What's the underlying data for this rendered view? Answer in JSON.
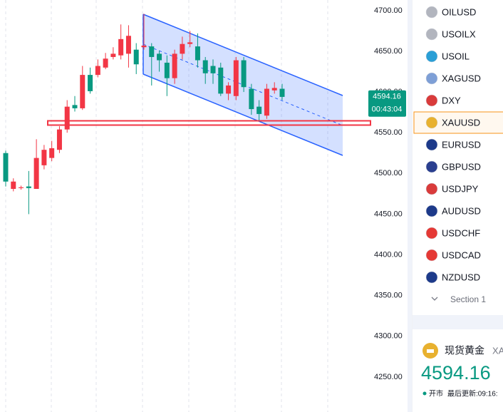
{
  "chart_data": {
    "type": "candlestick",
    "open": [
      4525,
      4481,
      4482,
      4484,
      4481,
      4510,
      4519,
      4529,
      4554,
      4584,
      4580,
      4621,
      4621,
      4630,
      4643,
      4645,
      4647,
      4652,
      4655,
      4656,
      4647,
      4636,
      4617,
      4647,
      4659,
      4656,
      4639,
      4632,
      4630,
      4598,
      4595,
      4639,
      4604,
      4582,
      4571,
      4602,
      4604
    ],
    "high": [
      4528,
      4494,
      4485,
      4503,
      4542,
      4535,
      4540,
      4558,
      4590,
      4595,
      4632,
      4630,
      4640,
      4648,
      4655,
      4683,
      4682,
      4660,
      4696,
      4660,
      4651,
      4645,
      4652,
      4668,
      4675,
      4672,
      4643,
      4640,
      4636,
      4612,
      4643,
      4643,
      4610,
      4590,
      4610,
      4612,
      4610
    ],
    "low": [
      4484,
      4478,
      4480,
      4450,
      4481,
      4505,
      4515,
      4525,
      4550,
      4576,
      4578,
      4598,
      4618,
      4628,
      4640,
      4640,
      4630,
      4622,
      4652,
      4608,
      4625,
      4595,
      4610,
      4640,
      4655,
      4630,
      4610,
      4610,
      4595,
      4590,
      4590,
      4600,
      4572,
      4565,
      4567,
      4598,
      4590
    ],
    "close": [
      4490,
      4490,
      4483,
      4482,
      4519,
      4529,
      4531,
      4554,
      4582,
      4580,
      4621,
      4601,
      4632,
      4641,
      4647,
      4665,
      4669,
      4634,
      4657,
      4643,
      4639,
      4617,
      4647,
      4659,
      4661,
      4639,
      4623,
      4623,
      4598,
      4608,
      4639,
      4606,
      4579,
      4573,
      4604,
      4605,
      4594
    ],
    "up_color": "#f23645",
    "down_color": "#089981",
    "ylim": [
      4207,
      4713
    ],
    "yticks": [
      {
        "value": 4250,
        "label": "4250.00"
      },
      {
        "value": 4300,
        "label": "4300.00"
      },
      {
        "value": 4350,
        "label": "4350.00"
      },
      {
        "value": 4400,
        "label": "4400.00"
      },
      {
        "value": 4450,
        "label": "4450.00"
      },
      {
        "value": 4500,
        "label": "4500.00"
      },
      {
        "value": 4550,
        "label": "4550.00"
      },
      {
        "value": 4600,
        "label": "4600.00"
      },
      {
        "value": 4650,
        "label": "4650.00"
      },
      {
        "value": 4700,
        "label": "4700.00"
      }
    ],
    "last_price": 4594.16,
    "countdown": "00:43:04",
    "support_line": 4562
  },
  "watchlist": {
    "items": [
      {
        "symbol": "OILUSD",
        "icon_color": "#b2b5be"
      },
      {
        "symbol": "USOILX",
        "icon_color": "#b2b5be"
      },
      {
        "symbol": "USOIL",
        "icon_color": "#2a9fd6"
      },
      {
        "symbol": "XAGUSD",
        "icon_color": "#7e9fd6"
      },
      {
        "symbol": "DXY",
        "icon_color": "#d93b3b"
      },
      {
        "symbol": "XAUUSD",
        "icon_color": "#e8b12f"
      },
      {
        "symbol": "EURUSD",
        "icon_color": "#1d3a8a"
      },
      {
        "symbol": "GBPUSD",
        "icon_color": "#2a3f8f"
      },
      {
        "symbol": "USDJPY",
        "icon_color": "#d93b3b"
      },
      {
        "symbol": "AUDUSD",
        "icon_color": "#1d3a8a"
      },
      {
        "symbol": "USDCHF",
        "icon_color": "#e53935"
      },
      {
        "symbol": "USDCAD",
        "icon_color": "#e53935"
      },
      {
        "symbol": "NZDUSD",
        "icon_color": "#1d3a8a"
      }
    ],
    "selected_index": 5,
    "section": "Section 1"
  },
  "quote": {
    "name": "现货黄金",
    "symbol": "XA",
    "price": 4594.16,
    "status": "开市",
    "updated": "最后更新:09:16:"
  }
}
